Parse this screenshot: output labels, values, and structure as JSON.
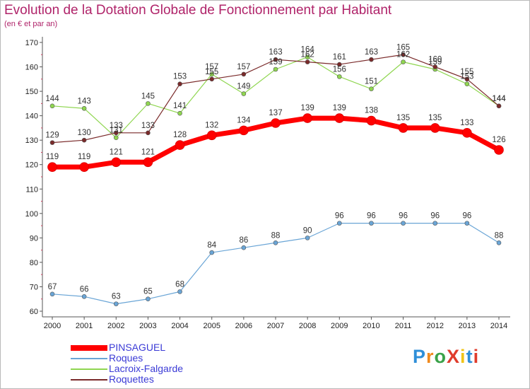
{
  "title": "Evolution de la Dotation Globale de Fonctionnement par Habitant",
  "subtitle": "(en € et par an)",
  "logo": {
    "text": "ProXiti",
    "colors": [
      "#2f8fd8",
      "#f08a1e",
      "#3aa24a",
      "#e03c2c",
      "#f0c419",
      "#2f8fd8",
      "#e03c2c"
    ]
  },
  "chart_data": {
    "type": "line",
    "title": "Evolution de la Dotation Globale de Fonctionnement par Habitant",
    "subtitle": "(en € et par an)",
    "x": [
      2000,
      2001,
      2002,
      2003,
      2004,
      2005,
      2006,
      2007,
      2008,
      2009,
      2010,
      2011,
      2012,
      2013,
      2014
    ],
    "ylim": [
      60,
      170
    ],
    "yticks": [
      60,
      70,
      80,
      90,
      100,
      110,
      120,
      130,
      140,
      150,
      160,
      170
    ],
    "grid": false,
    "legend_position": "bottom-left",
    "series": [
      {
        "name": "PINSAGUEL",
        "color": "#ff0000",
        "values": [
          119,
          119,
          121,
          121,
          128,
          132,
          134,
          137,
          139,
          139,
          138,
          135,
          135,
          133,
          126
        ]
      },
      {
        "name": "Roques",
        "color": "#6aa5d6",
        "values": [
          67,
          66,
          63,
          65,
          68,
          84,
          86,
          88,
          90,
          96,
          96,
          96,
          96,
          96,
          88
        ]
      },
      {
        "name": "Lacroix-Falgarde",
        "color": "#8fd650",
        "values": [
          144,
          143,
          131,
          145,
          141,
          157,
          149,
          159,
          164,
          156,
          151,
          162,
          159,
          153,
          144
        ]
      },
      {
        "name": "Roquettes",
        "color": "#7a2a2a",
        "values": [
          129,
          130,
          133,
          133,
          153,
          155,
          157,
          163,
          162,
          161,
          163,
          165,
          160,
          155,
          144
        ]
      }
    ]
  }
}
